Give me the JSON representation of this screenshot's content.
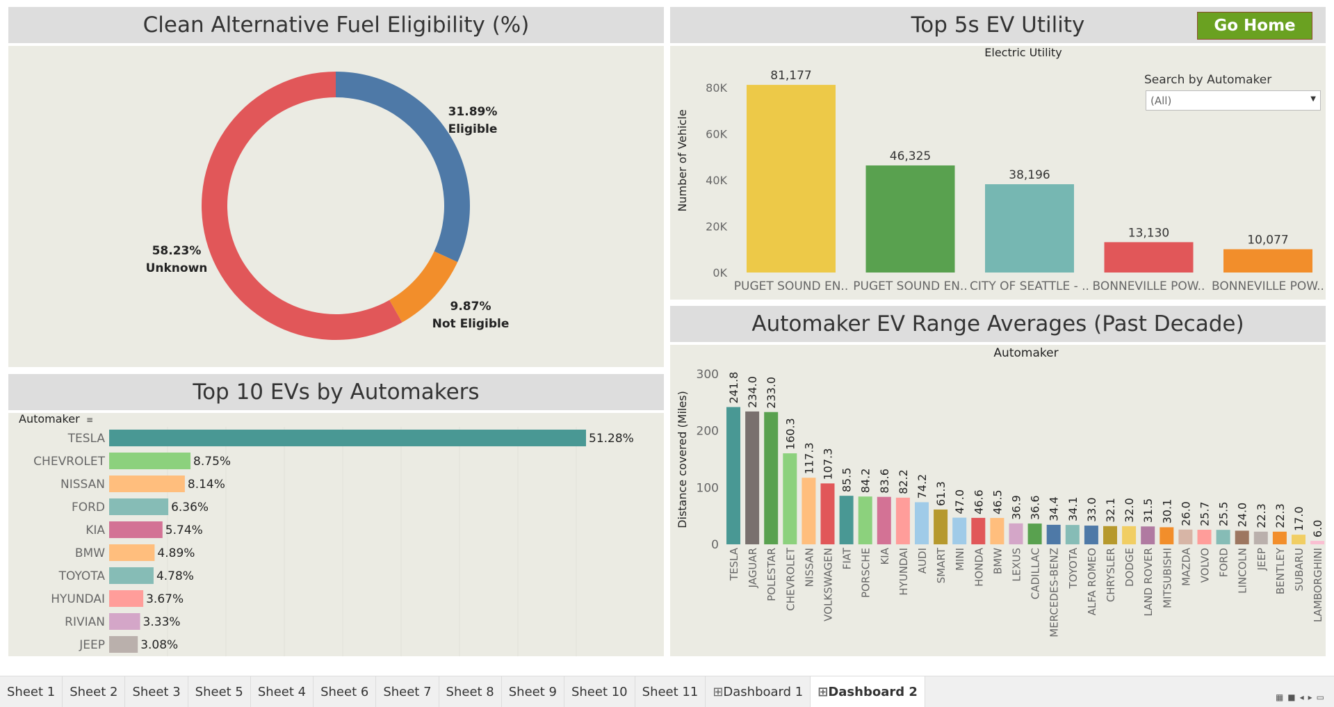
{
  "fuel_panel": {
    "title": "Clean Alternative Fuel Eligibility (%)",
    "slices": [
      {
        "label": "Eligible",
        "pct_label": "31.89%",
        "value": 31.89,
        "color": "#4e79a7"
      },
      {
        "label": "Not Eligible",
        "pct_label": "9.87%",
        "value": 9.87,
        "color": "#f28e2b"
      },
      {
        "label": "Unknown",
        "pct_label": "58.23%",
        "value": 58.23,
        "color": "#e15759"
      }
    ]
  },
  "utility_panel": {
    "title": "Top 5s EV Utility",
    "chart_title": "Electric Utility",
    "go_home": "Go Home",
    "search_label": "Search by Automaker",
    "search_value": "(All)",
    "ylabel": "Number of Vehicle",
    "ticks": [
      "80K",
      "60K",
      "40K",
      "20K",
      "0K"
    ],
    "bars": [
      {
        "label": "PUGET SOUND EN..",
        "value": 81177,
        "value_label": "81,177",
        "color": "#edc948"
      },
      {
        "label": "PUGET SOUND EN..",
        "value": 46325,
        "value_label": "46,325",
        "color": "#59a14f"
      },
      {
        "label": "CITY OF SEATTLE - ..",
        "value": 38196,
        "value_label": "38,196",
        "color": "#76b7b2"
      },
      {
        "label": "BONNEVILLE POW..",
        "value": 13130,
        "value_label": "13,130",
        "color": "#e15759"
      },
      {
        "label": "BONNEVILLE POW..",
        "value": 10077,
        "value_label": "10,077",
        "color": "#f28e2b"
      }
    ]
  },
  "top10_panel": {
    "title": "Top  10 EVs by Automakers",
    "axis_label": "Automaker",
    "bars": [
      {
        "label": "TESLA",
        "value": 51.28,
        "value_label": "51.28%",
        "color": "#499894"
      },
      {
        "label": "CHEVROLET",
        "value": 8.75,
        "value_label": "8.75%",
        "color": "#8cd17d"
      },
      {
        "label": "NISSAN",
        "value": 8.14,
        "value_label": "8.14%",
        "color": "#ffbe7d"
      },
      {
        "label": "FORD",
        "value": 6.36,
        "value_label": "6.36%",
        "color": "#86bcb6"
      },
      {
        "label": "KIA",
        "value": 5.74,
        "value_label": "5.74%",
        "color": "#d37295"
      },
      {
        "label": "BMW",
        "value": 4.89,
        "value_label": "4.89%",
        "color": "#ffbe7d"
      },
      {
        "label": "TOYOTA",
        "value": 4.78,
        "value_label": "4.78%",
        "color": "#86bcb6"
      },
      {
        "label": "HYUNDAI",
        "value": 3.67,
        "value_label": "3.67%",
        "color": "#ff9d9a"
      },
      {
        "label": "RIVIAN",
        "value": 3.33,
        "value_label": "3.33%",
        "color": "#d4a6c8"
      },
      {
        "label": "JEEP",
        "value": 3.08,
        "value_label": "3.08%",
        "color": "#bab0ac"
      }
    ]
  },
  "range_panel": {
    "title": "Automaker EV Range Averages (Past Decade)",
    "chart_title": "Automaker",
    "ylabel": "Distance covered (Miles)",
    "ticks": [
      "300",
      "200",
      "100",
      "0"
    ],
    "bars": [
      {
        "label": "TESLA",
        "value": 241.8,
        "value_label": "241.8",
        "color": "#499894"
      },
      {
        "label": "JAGUAR",
        "value": 234.0,
        "value_label": "234.0",
        "color": "#79706e"
      },
      {
        "label": "POLESTAR",
        "value": 233.0,
        "value_label": "233.0",
        "color": "#59a14f"
      },
      {
        "label": "CHEVROLET",
        "value": 160.3,
        "value_label": "160.3",
        "color": "#8cd17d"
      },
      {
        "label": "NISSAN",
        "value": 117.3,
        "value_label": "117.3",
        "color": "#ffbe7d"
      },
      {
        "label": "VOLKSWAGEN",
        "value": 107.3,
        "value_label": "107.3",
        "color": "#e15759"
      },
      {
        "label": "FIAT",
        "value": 85.5,
        "value_label": "85.5",
        "color": "#499894"
      },
      {
        "label": "PORSCHE",
        "value": 84.2,
        "value_label": "84.2",
        "color": "#8cd17d"
      },
      {
        "label": "KIA",
        "value": 83.6,
        "value_label": "83.6",
        "color": "#d37295"
      },
      {
        "label": "HYUNDAI",
        "value": 82.2,
        "value_label": "82.2",
        "color": "#ff9d9a"
      },
      {
        "label": "AUDI",
        "value": 74.2,
        "value_label": "74.2",
        "color": "#a0cbe8"
      },
      {
        "label": "SMART",
        "value": 61.3,
        "value_label": "61.3",
        "color": "#b6992d"
      },
      {
        "label": "MINI",
        "value": 47.0,
        "value_label": "47.0",
        "color": "#a0cbe8"
      },
      {
        "label": "HONDA",
        "value": 46.6,
        "value_label": "46.6",
        "color": "#e15759"
      },
      {
        "label": "BMW",
        "value": 46.5,
        "value_label": "46.5",
        "color": "#ffbe7d"
      },
      {
        "label": "LEXUS",
        "value": 36.9,
        "value_label": "36.9",
        "color": "#d4a6c8"
      },
      {
        "label": "CADILLAC",
        "value": 36.6,
        "value_label": "36.6",
        "color": "#59a14f"
      },
      {
        "label": "MERCEDES-BENZ",
        "value": 34.4,
        "value_label": "34.4",
        "color": "#4e79a7"
      },
      {
        "label": "TOYOTA",
        "value": 34.1,
        "value_label": "34.1",
        "color": "#86bcb6"
      },
      {
        "label": "ALFA ROMEO",
        "value": 33.0,
        "value_label": "33.0",
        "color": "#4e79a7"
      },
      {
        "label": "CHRYSLER",
        "value": 32.1,
        "value_label": "32.1",
        "color": "#b6992d"
      },
      {
        "label": "DODGE",
        "value": 32.0,
        "value_label": "32.0",
        "color": "#f1ce63"
      },
      {
        "label": "LAND ROVER",
        "value": 31.5,
        "value_label": "31.5",
        "color": "#b07aa1"
      },
      {
        "label": "MITSUBISHI",
        "value": 30.1,
        "value_label": "30.1",
        "color": "#f28e2b"
      },
      {
        "label": "MAZDA",
        "value": 26.0,
        "value_label": "26.0",
        "color": "#d7b5a6"
      },
      {
        "label": "VOLVO",
        "value": 25.7,
        "value_label": "25.7",
        "color": "#ff9d9a"
      },
      {
        "label": "FORD",
        "value": 25.5,
        "value_label": "25.5",
        "color": "#86bcb6"
      },
      {
        "label": "LINCOLN",
        "value": 24.0,
        "value_label": "24.0",
        "color": "#9d7660"
      },
      {
        "label": "JEEP",
        "value": 22.3,
        "value_label": "22.3",
        "color": "#bab0ac"
      },
      {
        "label": "BENTLEY",
        "value": 22.3,
        "value_label": "22.3",
        "color": "#f28e2b"
      },
      {
        "label": "SUBARU",
        "value": 17.0,
        "value_label": "17.0",
        "color": "#f1ce63"
      },
      {
        "label": "LAMBORGHINI",
        "value": 6.0,
        "value_label": "6.0",
        "color": "#fabfd2"
      }
    ]
  },
  "tabs": [
    "Sheet 1",
    "Sheet 2",
    "Sheet 3",
    "Sheet 5",
    "Sheet 4",
    "Sheet 6",
    "Sheet 7",
    "Sheet 8",
    "Sheet 9",
    "Sheet 10",
    "Sheet 11",
    "Dashboard 1",
    "Dashboard 2"
  ],
  "active_tab": "Dashboard 2",
  "chart_data": [
    {
      "type": "pie",
      "title": "Clean Alternative Fuel Eligibility (%)",
      "categories": [
        "Eligible",
        "Not Eligible",
        "Unknown"
      ],
      "values": [
        31.89,
        9.87,
        58.23
      ]
    },
    {
      "type": "bar",
      "title": "Top 5s EV Utility",
      "xlabel": "Electric Utility",
      "ylabel": "Number of Vehicle",
      "categories": [
        "PUGET SOUND EN..",
        "PUGET SOUND EN..",
        "CITY OF SEATTLE - ..",
        "BONNEVILLE POW..",
        "BONNEVILLE POW.."
      ],
      "values": [
        81177,
        46325,
        38196,
        13130,
        10077
      ],
      "ylim": [
        0,
        85000
      ]
    },
    {
      "type": "bar",
      "title": "Top  10 EVs by Automakers",
      "ylabel": "Automaker",
      "categories": [
        "TESLA",
        "CHEVROLET",
        "NISSAN",
        "FORD",
        "KIA",
        "BMW",
        "TOYOTA",
        "HYUNDAI",
        "RIVIAN",
        "JEEP"
      ],
      "values": [
        51.28,
        8.75,
        8.14,
        6.36,
        5.74,
        4.89,
        4.78,
        3.67,
        3.33,
        3.08
      ]
    },
    {
      "type": "bar",
      "title": "Automaker EV Range Averages (Past Decade)",
      "xlabel": "Automaker",
      "ylabel": "Distance covered (Miles)",
      "categories": [
        "TESLA",
        "JAGUAR",
        "POLESTAR",
        "CHEVROLET",
        "NISSAN",
        "VOLKSWAGEN",
        "FIAT",
        "PORSCHE",
        "KIA",
        "HYUNDAI",
        "AUDI",
        "SMART",
        "MINI",
        "HONDA",
        "BMW",
        "LEXUS",
        "CADILLAC",
        "MERCEDES-BENZ",
        "TOYOTA",
        "ALFA ROMEO",
        "CHRYSLER",
        "DODGE",
        "LAND ROVER",
        "MITSUBISHI",
        "MAZDA",
        "VOLVO",
        "FORD",
        "LINCOLN",
        "JEEP",
        "BENTLEY",
        "SUBARU",
        "LAMBORGHINI"
      ],
      "values": [
        241.8,
        234.0,
        233.0,
        160.3,
        117.3,
        107.3,
        85.5,
        84.2,
        83.6,
        82.2,
        74.2,
        61.3,
        47.0,
        46.6,
        46.5,
        36.9,
        36.6,
        34.4,
        34.1,
        33.0,
        32.1,
        32.0,
        31.5,
        30.1,
        26.0,
        25.7,
        25.5,
        24.0,
        22.3,
        22.3,
        17.0,
        6.0
      ],
      "ylim": [
        0,
        300
      ]
    }
  ]
}
